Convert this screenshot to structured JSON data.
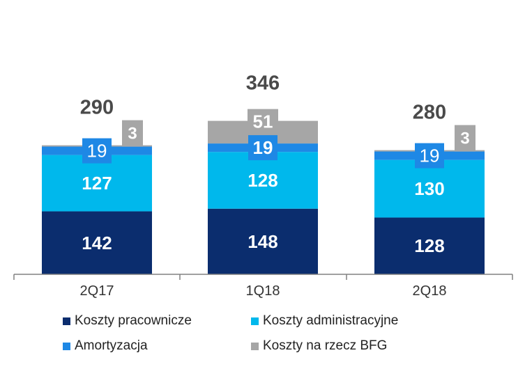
{
  "chart_data": {
    "type": "bar",
    "stacked": true,
    "categories": [
      "2Q17",
      "1Q18",
      "2Q18"
    ],
    "series": [
      {
        "name": "Koszty pracownicze",
        "values": [
          142,
          148,
          128
        ],
        "color": "#0b2d6e",
        "label_color": "#ffffff"
      },
      {
        "name": "Koszty administracyjne",
        "values": [
          127,
          128,
          130
        ],
        "color": "#00b8ec",
        "label_color": "#ffffff"
      },
      {
        "name": "Amortyzacja",
        "values": [
          19,
          19,
          19
        ],
        "color": "#1e88e5",
        "label_color": "#ffffff"
      },
      {
        "name": "Koszty na rzecz BFG",
        "values": [
          3,
          51,
          3
        ],
        "color": "#a6a6a6",
        "label_color": "#ffffff"
      }
    ],
    "data_labels": {
      "Koszty pracownicze": [
        "142",
        "148",
        "128"
      ],
      "Koszty administracyjne": [
        "127",
        "128",
        "130"
      ],
      "Amortyzacja": [
        "19",
        "19",
        "19"
      ],
      "Koszty na rzecz BFG": [
        "3",
        "51",
        "3"
      ]
    },
    "totals": [
      "290",
      "346",
      "280"
    ],
    "legend_position": "bottom",
    "grid": false,
    "ylim": [
      0,
      350
    ]
  }
}
